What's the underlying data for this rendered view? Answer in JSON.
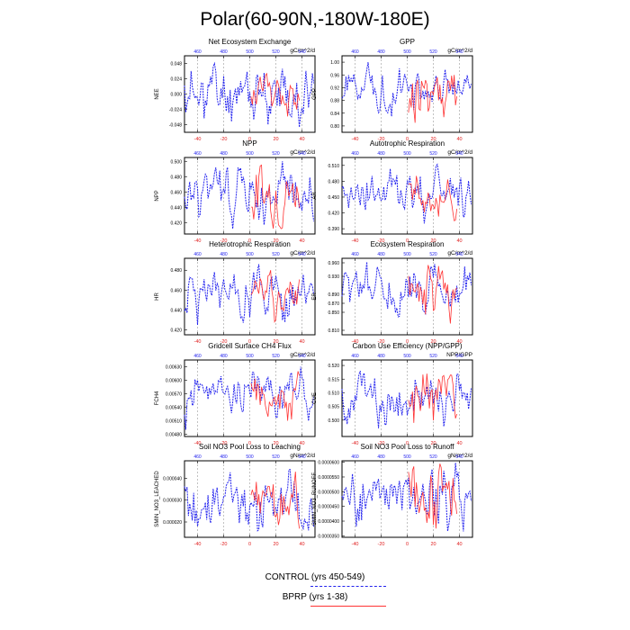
{
  "figure": {
    "title": "Polar(60-90N,-180W-180E)",
    "legend": [
      {
        "label": "CONTROL (yrs 450-549)",
        "color": "#2222ee",
        "style": "dashed"
      },
      {
        "label": "BPRP (yrs 1-38)",
        "color": "#ff3333",
        "style": "solid"
      }
    ]
  },
  "chart_data": [
    {
      "type": "line",
      "title": "Net Ecosystem Exchange",
      "units": "gC/m^2/d",
      "ylabel": "NEE",
      "ylim": [
        -0.06,
        0.06
      ],
      "yticks": [
        "-0.048",
        "-0.024",
        "0.000",
        "0.024",
        "0.048"
      ],
      "xlim": [
        -50,
        50
      ],
      "bottom_xticks": [
        "-40",
        "-20",
        "0",
        "20",
        "40"
      ],
      "top_xticks": [
        "460",
        "480",
        "500",
        "520",
        "540"
      ],
      "series": [
        {
          "name": "CONTROL (yrs 450-549)",
          "seed": 11,
          "min": -0.052,
          "max": 0.048
        },
        {
          "name": "BPRP (yrs 1-38)",
          "seed": 12,
          "min": -0.035,
          "max": 0.032
        }
      ]
    },
    {
      "type": "line",
      "title": "GPP",
      "units": "gC/m^2/d",
      "ylabel": "GPP",
      "ylim": [
        0.78,
        1.02
      ],
      "yticks": [
        "0.80",
        "0.84",
        "0.88",
        "0.92",
        "0.96",
        "1.00"
      ],
      "xlim": [
        -50,
        50
      ],
      "bottom_xticks": [
        "-40",
        "-20",
        "0",
        "20",
        "40"
      ],
      "top_xticks": [
        "460",
        "480",
        "500",
        "520",
        "540"
      ],
      "series": [
        {
          "name": "CONTROL (yrs 450-549)",
          "seed": 21,
          "min": 0.83,
          "max": 1.0
        },
        {
          "name": "BPRP (yrs 1-38)",
          "seed": 22,
          "min": 0.81,
          "max": 0.96
        }
      ]
    },
    {
      "type": "line",
      "title": "NPP",
      "units": "gC/m^2/d",
      "ylabel": "NPP",
      "ylim": [
        0.405,
        0.505
      ],
      "yticks": [
        "0.420",
        "0.440",
        "0.460",
        "0.480",
        "0.500"
      ],
      "xlim": [
        -50,
        50
      ],
      "bottom_xticks": [
        "-40",
        "-20",
        "0",
        "20",
        "40"
      ],
      "top_xticks": [
        "460",
        "480",
        "500",
        "520",
        "540"
      ],
      "series": [
        {
          "name": "CONTROL (yrs 450-549)",
          "seed": 31,
          "min": 0.412,
          "max": 0.5
        },
        {
          "name": "BPRP (yrs 1-38)",
          "seed": 32,
          "min": 0.412,
          "max": 0.495
        }
      ]
    },
    {
      "type": "line",
      "title": "Autotrophic Respiration",
      "units": "gC/m^2/d",
      "ylabel": "AR",
      "ylim": [
        0.38,
        0.525
      ],
      "yticks": [
        "0.390",
        "0.420",
        "0.450",
        "0.480",
        "0.510"
      ],
      "xlim": [
        -50,
        50
      ],
      "bottom_xticks": [
        "-40",
        "-20",
        "0",
        "20",
        "40"
      ],
      "top_xticks": [
        "460",
        "480",
        "500",
        "520",
        "540"
      ],
      "series": [
        {
          "name": "CONTROL (yrs 450-549)",
          "seed": 41,
          "min": 0.4,
          "max": 0.512
        },
        {
          "name": "BPRP (yrs 1-38)",
          "seed": 42,
          "min": 0.405,
          "max": 0.49
        }
      ]
    },
    {
      "type": "line",
      "title": "Heterotrophic Respiration",
      "units": "gC/m^2/d",
      "ylabel": "HR",
      "ylim": [
        0.415,
        0.492
      ],
      "yticks": [
        "0.420",
        "0.440",
        "0.460",
        "0.480"
      ],
      "xlim": [
        -50,
        50
      ],
      "bottom_xticks": [
        "-40",
        "-20",
        "0",
        "20",
        "40"
      ],
      "top_xticks": [
        "460",
        "480",
        "500",
        "520",
        "540"
      ],
      "series": [
        {
          "name": "CONTROL (yrs 450-549)",
          "seed": 51,
          "min": 0.425,
          "max": 0.486
        },
        {
          "name": "BPRP (yrs 1-38)",
          "seed": 52,
          "min": 0.428,
          "max": 0.48
        }
      ]
    },
    {
      "type": "line",
      "title": "Ecosystem Respiration",
      "units": "gC/m^2/d",
      "ylabel": "ER",
      "ylim": [
        0.8,
        0.97
      ],
      "yticks": [
        "0.810",
        "0.850",
        "0.870",
        "0.890",
        "0.930",
        "0.960"
      ],
      "xlim": [
        -50,
        50
      ],
      "bottom_xticks": [
        "-40",
        "-20",
        "0",
        "20",
        "40"
      ],
      "top_xticks": [
        "460",
        "480",
        "500",
        "520",
        "540"
      ],
      "series": [
        {
          "name": "CONTROL (yrs 450-549)",
          "seed": 61,
          "min": 0.84,
          "max": 0.962
        },
        {
          "name": "BPRP (yrs 1-38)",
          "seed": 62,
          "min": 0.825,
          "max": 0.955
        }
      ]
    },
    {
      "type": "line",
      "title": "Gridcell Surface CH4 Flux",
      "units": "gC/m^2/d",
      "ylabel": "FCH4",
      "ylim": [
        0.00475,
        0.00645
      ],
      "yticks": [
        "0.00480",
        "0.00510",
        "0.00540",
        "0.00570",
        "0.00600",
        "0.00630"
      ],
      "xlim": [
        -50,
        50
      ],
      "bottom_xticks": [
        "-40",
        "-20",
        "0",
        "20",
        "40"
      ],
      "top_xticks": [
        "460",
        "480",
        "500",
        "520",
        "540"
      ],
      "series": [
        {
          "name": "CONTROL (yrs 450-549)",
          "seed": 71,
          "min": 0.0049,
          "max": 0.0063
        },
        {
          "name": "BPRP (yrs 1-38)",
          "seed": 72,
          "min": 0.0051,
          "max": 0.0062
        }
      ]
    },
    {
      "type": "line",
      "title": "Carbon Use Efficiency (NPP/GPP)",
      "units": "NPP/GPP",
      "ylabel": "CUE",
      "ylim": [
        0.494,
        0.522
      ],
      "yticks": [
        "0.500",
        "0.505",
        "0.510",
        "0.515",
        "0.520"
      ],
      "xlim": [
        -50,
        50
      ],
      "bottom_xticks": [
        "-40",
        "-20",
        "0",
        "20",
        "40"
      ],
      "top_xticks": [
        "460",
        "480",
        "500",
        "520",
        "540"
      ],
      "series": [
        {
          "name": "CONTROL (yrs 450-549)",
          "seed": 81,
          "min": 0.497,
          "max": 0.518
        },
        {
          "name": "BPRP (yrs 1-38)",
          "seed": 82,
          "min": 0.499,
          "max": 0.517
        }
      ]
    },
    {
      "type": "line",
      "title": "Soil NO3 Pool Loss to Leaching",
      "units": "gN/m^2/d",
      "ylabel": "SMIN_NO3_LEACHED",
      "ylim": [
        1.3e-05,
        4.8e-05
      ],
      "yticks": [
        "0.000020",
        "0.000030",
        "0.000040"
      ],
      "xlim": [
        -50,
        50
      ],
      "bottom_xticks": [
        "-40",
        "-20",
        "0",
        "20",
        "40"
      ],
      "top_xticks": [
        "460",
        "480",
        "500",
        "520",
        "540"
      ],
      "series": [
        {
          "name": "CONTROL (yrs 450-549)",
          "seed": 91,
          "min": 1.6e-05,
          "max": 4.4e-05
        },
        {
          "name": "BPRP (yrs 1-38)",
          "seed": 92,
          "min": 1.7e-05,
          "max": 4.3e-05
        }
      ]
    },
    {
      "type": "line",
      "title": "Soil NO3 Pool Loss to Runoff",
      "units": "gN/m^2/d",
      "ylabel": "SMIN_NO3_RUNOFF",
      "ylim": [
        3.45e-05,
        6.05e-05
      ],
      "yticks": [
        "0.0000350",
        "0.0000400",
        "0.0000450",
        "0.0000500",
        "0.0000550",
        "0.0000600"
      ],
      "xlim": [
        -50,
        50
      ],
      "bottom_xticks": [
        "-40",
        "-20",
        "0",
        "20",
        "40"
      ],
      "top_xticks": [
        "460",
        "480",
        "500",
        "520",
        "540"
      ],
      "series": [
        {
          "name": "CONTROL (yrs 450-549)",
          "seed": 101,
          "min": 3.65e-05,
          "max": 5.98e-05
        },
        {
          "name": "BPRP (yrs 1-38)",
          "seed": 102,
          "min": 3.75e-05,
          "max": 5.95e-05
        }
      ]
    }
  ]
}
